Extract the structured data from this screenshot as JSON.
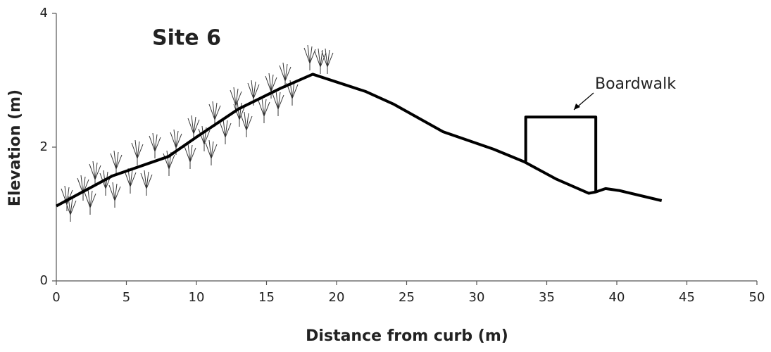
{
  "chart_data": {
    "type": "line",
    "title": "Site 6",
    "x_label": "Distance from curb (m)",
    "y_label": "Elevation (m)",
    "annotation": "Boardwalk",
    "series": [
      {
        "color": "#000000",
        "x": [
          0,
          4,
          8,
          10,
          13,
          16,
          18.3,
          22.1,
          24.1,
          27.6,
          31.2,
          33.4,
          35.7,
          38,
          38.5,
          39.2,
          40.2,
          43.2
        ],
        "values": [
          1.12,
          1.57,
          1.86,
          2.15,
          2.57,
          2.88,
          3.09,
          2.83,
          2.64,
          2.23,
          1.97,
          1.78,
          1.52,
          1.31,
          1.33,
          1.38,
          1.35,
          1.2
        ]
      },
      {
        "color": "#000000",
        "x": [
          33.5,
          33.5,
          38.5,
          38.5
        ],
        "values": [
          1.78,
          2.45,
          2.45,
          1.33
        ]
      }
    ],
    "xlim": [
      0,
      50
    ],
    "xticks": [
      0,
      5,
      10,
      15,
      20,
      25,
      30,
      35,
      40,
      45,
      50
    ],
    "ylim": [
      0,
      4
    ],
    "yticks": [
      0,
      2,
      4
    ],
    "grid": false
  }
}
